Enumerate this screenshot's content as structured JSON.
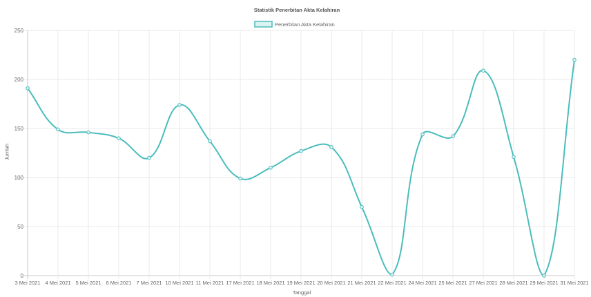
{
  "chart_data": {
    "type": "line",
    "title": "Statistik Penerbitan Akta Kelahiran",
    "xlabel": "Tanggal",
    "ylabel": "Jumlah",
    "categories": [
      "3 Mei 2021",
      "4 Mei 2021",
      "5 Mei 2021",
      "6 Mei 2021",
      "7 Mei 2021",
      "10 Mei 2021",
      "11 Mei 2021",
      "17 Mei 2021",
      "18 Mei 2021",
      "19 Mei 2021",
      "20 Mei 2021",
      "21 Mei 2021",
      "22 Mei 2021",
      "24 Mei 2021",
      "25 Mei 2021",
      "27 Mei 2021",
      "28 Mei 2021",
      "29 Mei 2021",
      "31 Mei 2021"
    ],
    "series": [
      {
        "name": "Penerbitan Akta Kelahiran",
        "values": [
          191,
          149,
          146,
          140,
          120,
          174,
          137,
          99,
          110,
          127,
          131,
          70,
          1,
          144,
          142,
          209,
          121,
          0,
          220
        ],
        "color": "#4bbcbc",
        "fill_color": "#dbf2f2"
      }
    ],
    "ylim": [
      0,
      250
    ],
    "yticks": [
      0,
      50,
      100,
      150,
      200,
      250
    ],
    "grid": true,
    "legend": "top",
    "smooth": true
  }
}
